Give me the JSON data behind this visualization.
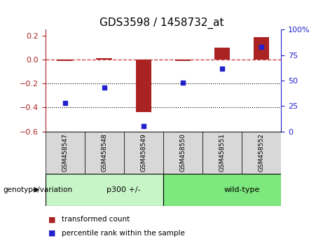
{
  "title": "GDS3598 / 1458732_at",
  "samples": [
    "GSM458547",
    "GSM458548",
    "GSM458549",
    "GSM458550",
    "GSM458551",
    "GSM458552"
  ],
  "red_bars": [
    -0.01,
    0.01,
    -0.44,
    -0.01,
    0.1,
    0.19
  ],
  "blue_dots": [
    28,
    43,
    5,
    48,
    62,
    83
  ],
  "groups": [
    {
      "label": "p300 +/-",
      "start": 0,
      "end": 3
    },
    {
      "label": "wild-type",
      "start": 3,
      "end": 6
    }
  ],
  "group_bg_colors": [
    "#c8f5c8",
    "#7de87d"
  ],
  "ylim_left": [
    -0.6,
    0.25
  ],
  "ylim_right": [
    0,
    100
  ],
  "yticks_left": [
    -0.6,
    -0.4,
    -0.2,
    0.0,
    0.2
  ],
  "yticks_right": [
    0,
    25,
    50,
    75,
    100
  ],
  "bar_color": "#aa2222",
  "dot_color": "#2222cc",
  "dashed_line_color": "#cc4444",
  "background_color": "#ffffff",
  "plot_bg": "#ffffff",
  "genotype_label": "genotype/variation",
  "legend_red": "transformed count",
  "legend_blue": "percentile rank within the sample"
}
